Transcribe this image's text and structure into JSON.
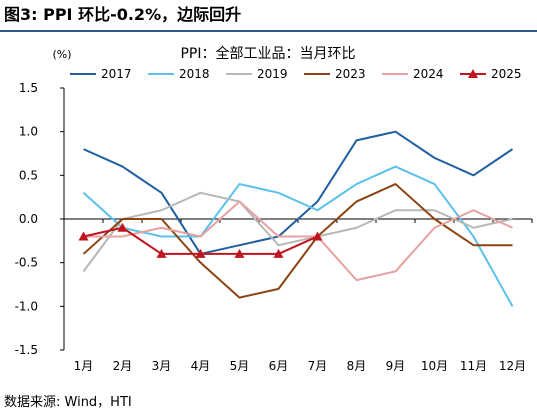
{
  "figure": {
    "caption": "图3:  PPI 环比-0.2%，边际回升",
    "source": "数据来源:  Wind，HTI"
  },
  "chart_data": {
    "type": "line",
    "title": "PPI：全部工业品：当月环比",
    "ylabel": "(%)",
    "xlabel": "",
    "categories": [
      "1月",
      "2月",
      "3月",
      "4月",
      "5月",
      "6月",
      "7月",
      "8月",
      "9月",
      "10月",
      "11月",
      "12月"
    ],
    "ylim": [
      -1.5,
      1.5
    ],
    "yticks": [
      1.5,
      1.0,
      0.5,
      0.0,
      -0.5,
      -1.0,
      -1.5
    ],
    "ytick_labels": [
      "1.5",
      "1.0",
      "0.5",
      "0.0",
      "-0.5",
      "-1.0",
      "-1.5"
    ],
    "grid": false,
    "legend_position": "top",
    "series": [
      {
        "name": "2017",
        "color": "#1f5fa0",
        "marker": "none",
        "values": [
          0.8,
          0.6,
          0.3,
          -0.4,
          -0.3,
          -0.2,
          0.2,
          0.9,
          1.0,
          0.7,
          0.5,
          0.8
        ]
      },
      {
        "name": "2018",
        "color": "#5bc0eb",
        "marker": "none",
        "values": [
          0.3,
          -0.1,
          -0.2,
          -0.2,
          0.4,
          0.3,
          0.1,
          0.4,
          0.6,
          0.4,
          -0.2,
          -1.0
        ]
      },
      {
        "name": "2019",
        "color": "#b7b7b7",
        "marker": "none",
        "values": [
          -0.6,
          0.0,
          0.1,
          0.3,
          0.2,
          -0.3,
          -0.2,
          -0.1,
          0.1,
          0.1,
          -0.1,
          0.0
        ]
      },
      {
        "name": "2023",
        "color": "#8b4513",
        "marker": "none",
        "values": [
          -0.4,
          0.0,
          0.0,
          -0.5,
          -0.9,
          -0.8,
          -0.2,
          0.2,
          0.4,
          0.0,
          -0.3,
          -0.3
        ]
      },
      {
        "name": "2024",
        "color": "#e8a0a0",
        "marker": "none",
        "values": [
          -0.2,
          -0.2,
          -0.1,
          -0.2,
          0.2,
          -0.2,
          -0.2,
          -0.7,
          -0.6,
          -0.1,
          0.1,
          -0.1
        ]
      },
      {
        "name": "2025",
        "color": "#c0141e",
        "marker": "triangle",
        "values": [
          -0.2,
          -0.1,
          -0.4,
          -0.4,
          -0.4,
          -0.4,
          -0.2,
          null,
          null,
          null,
          null,
          null
        ]
      }
    ]
  }
}
